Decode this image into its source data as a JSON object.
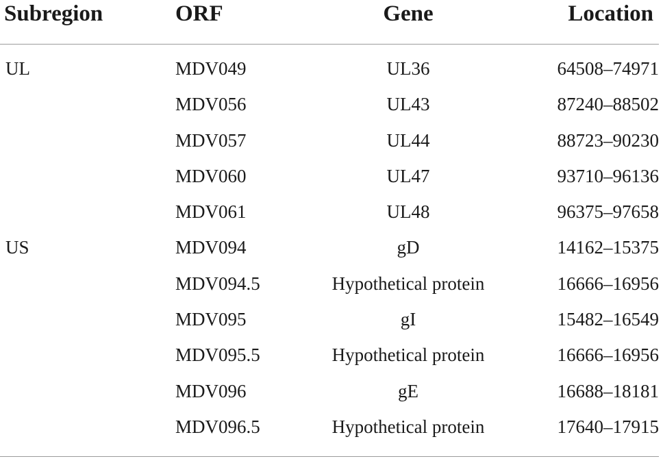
{
  "table": {
    "headers": {
      "subregion": "Subregion",
      "orf": "ORF",
      "gene": "Gene",
      "location": "Location"
    },
    "rows": [
      {
        "subregion": "UL",
        "orf": "MDV049",
        "gene": "UL36",
        "location": "64508–74971"
      },
      {
        "subregion": "",
        "orf": "MDV056",
        "gene": "UL43",
        "location": "87240–88502"
      },
      {
        "subregion": "",
        "orf": "MDV057",
        "gene": "UL44",
        "location": "88723–90230"
      },
      {
        "subregion": "",
        "orf": "MDV060",
        "gene": "UL47",
        "location": "93710–96136"
      },
      {
        "subregion": "",
        "orf": "MDV061",
        "gene": "UL48",
        "location": "96375–97658"
      },
      {
        "subregion": "US",
        "orf": "MDV094",
        "gene": "gD",
        "location": "14162–15375"
      },
      {
        "subregion": "",
        "orf": "MDV094.5",
        "gene": "Hypothetical protein",
        "location": "16666–16956"
      },
      {
        "subregion": "",
        "orf": "MDV095",
        "gene": "gI",
        "location": "15482–16549"
      },
      {
        "subregion": "",
        "orf": "MDV095.5",
        "gene": "Hypothetical protein",
        "location": "16666–16956"
      },
      {
        "subregion": "",
        "orf": "MDV096",
        "gene": "gE",
        "location": "16688–18181"
      },
      {
        "subregion": "",
        "orf": "MDV096.5",
        "gene": "Hypothetical protein",
        "location": "17640–17915"
      }
    ]
  }
}
